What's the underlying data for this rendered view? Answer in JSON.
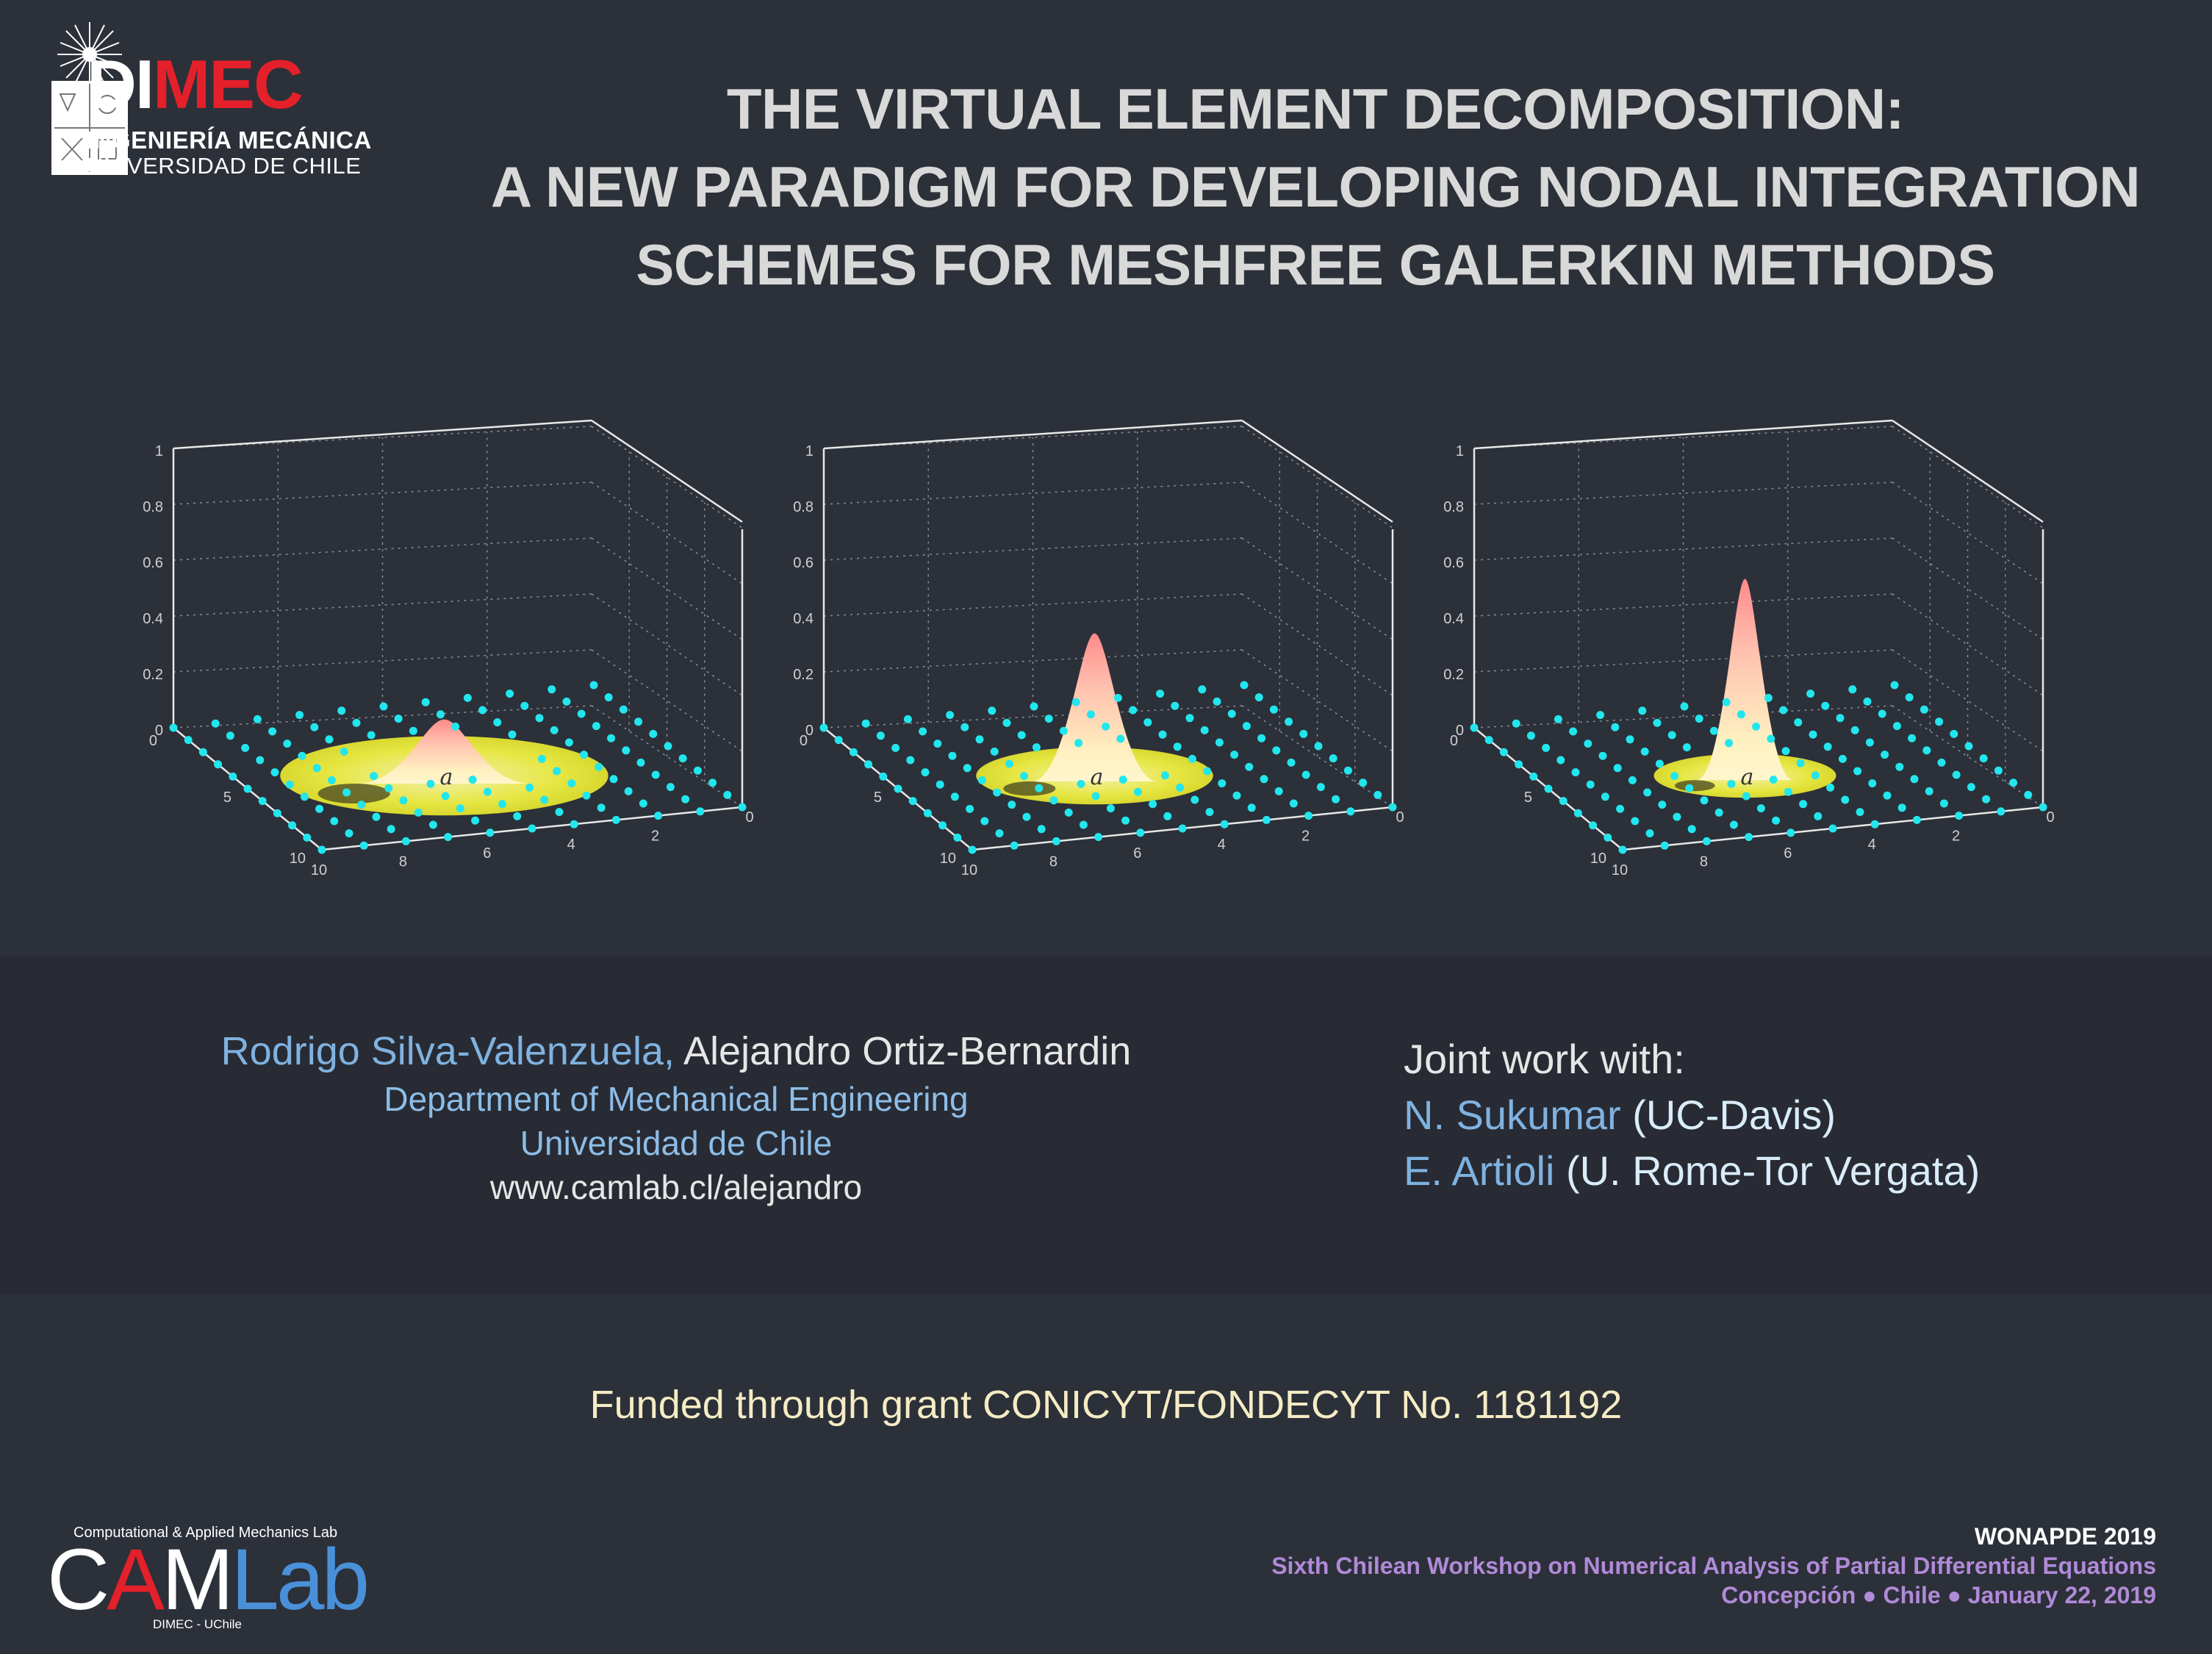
{
  "logo": {
    "name_part1": "DI",
    "name_part2": "MEC",
    "line1": "INGENIERÍA MECÁNICA",
    "line2": "UNIVERSIDAD DE CHILE",
    "accent_color": "#e4202a"
  },
  "title": {
    "line1": "THE VIRTUAL ELEMENT DECOMPOSITION:",
    "line2": "A NEW PARADIGM FOR DEVELOPING NODAL INTEGRATION",
    "line3": "SCHEMES FOR MESHFREE GALERKIN METHODS"
  },
  "chart_data": [
    {
      "type": "surface",
      "z_ticks": [
        "0",
        "0.2",
        "0.4",
        "0.6",
        "0.8",
        "1"
      ],
      "x_ticks": [
        "0",
        "2",
        "4",
        "6",
        "8",
        "10"
      ],
      "y_ticks": [
        "0",
        "5",
        "10"
      ],
      "peak_label": "a",
      "peak_height": 0.23,
      "support_radius": 0.36
    },
    {
      "type": "surface",
      "z_ticks": [
        "0",
        "0.2",
        "0.4",
        "0.6",
        "0.8",
        "1"
      ],
      "x_ticks": [
        "0",
        "2",
        "4",
        "6",
        "8",
        "10"
      ],
      "y_ticks": [
        "0",
        "5",
        "10"
      ],
      "peak_label": "a",
      "peak_height": 0.53,
      "support_radius": 0.26
    },
    {
      "type": "surface",
      "z_ticks": [
        "0",
        "0.2",
        "0.4",
        "0.6",
        "0.8",
        "1"
      ],
      "x_ticks": [
        "0",
        "2",
        "4",
        "6",
        "8",
        "10"
      ],
      "y_ticks": [
        "0",
        "5",
        "10"
      ],
      "peak_label": "a",
      "peak_height": 0.72,
      "support_radius": 0.2
    }
  ],
  "authors": {
    "first": "Rodrigo Silva-Valenzuela,",
    "second": "Alejandro Ortiz-Bernardin",
    "department": "Department of Mechanical Engineering",
    "university": "Universidad de Chile",
    "url": "www.camlab.cl/alejandro"
  },
  "joint": {
    "heading": "Joint work with:",
    "people": [
      {
        "name": "N. Sukumar",
        "inst": "(UC-Davis)"
      },
      {
        "name": "E. Artioli",
        "inst": "(U. Rome-Tor Vergata)"
      }
    ]
  },
  "funding": "Funded through grant CONICYT/FONDECYT No. 1181192",
  "camlab": {
    "tagline": "Computational & Applied Mechanics Lab",
    "word1": "C",
    "word2": "A",
    "word3": "M",
    "word4": "Lab",
    "sub": "DIMEC - UChile"
  },
  "conference": {
    "name": "WONAPDE 2019",
    "full": "Sixth Chilean Workshop on Numerical Analysis of Partial Differential Equations",
    "place": "Concepción ● Chile ● January 22, 2019"
  },
  "colors": {
    "background": "#2c3039",
    "node": "#22e6ee",
    "surface_top": "#ffb0a8",
    "surface_base": "#fff0b0",
    "support_disc": "#e3e33a"
  }
}
